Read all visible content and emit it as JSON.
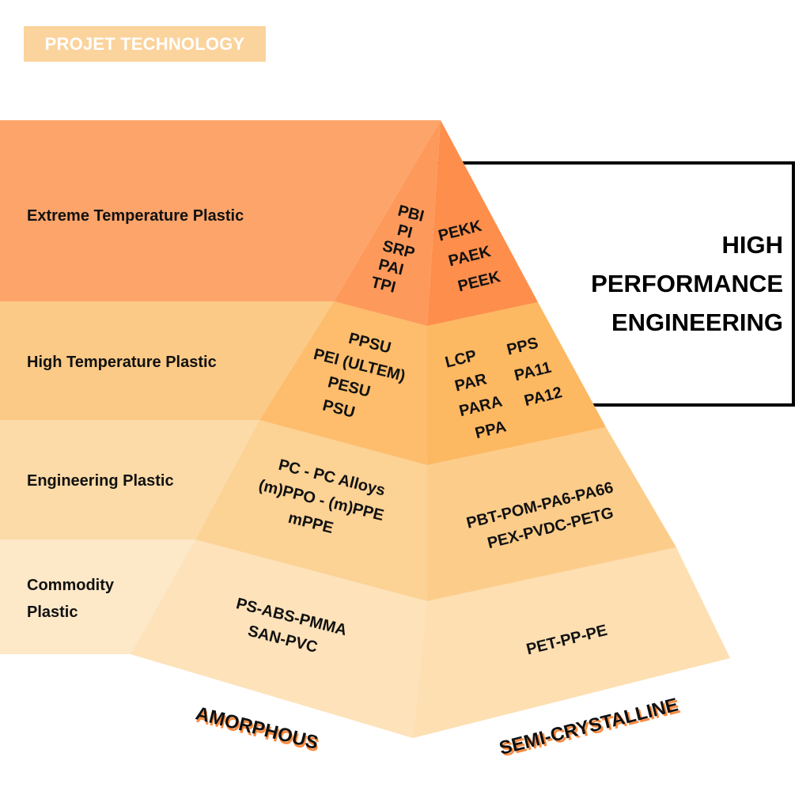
{
  "brand": {
    "label": "PROJET TECHNOLOGY"
  },
  "callout": {
    "lines": [
      "HIGH",
      "PERFORMANCE",
      "ENGINEERING"
    ]
  },
  "tiers": [
    {
      "label": [
        "Extreme Temperature Plastic"
      ],
      "amorphous": [
        "PBI",
        "PI",
        "SRP",
        "PAI",
        "TPI"
      ],
      "semi_crystalline": [
        "PEKK",
        "PAEK",
        "PEEK"
      ]
    },
    {
      "label": [
        "High Temperature Plastic"
      ],
      "amorphous": [
        "PPSU",
        "PEI (ULTEM)",
        "PESU",
        "PSU"
      ],
      "semi_crystalline_col1": [
        "LCP",
        "PAR",
        "PARA",
        "PPA"
      ],
      "semi_crystalline_col2": [
        "PPS",
        "PA11",
        "PA12"
      ]
    },
    {
      "label": [
        "Engineering Plastic"
      ],
      "amorphous": [
        "PC - PC Alloys",
        "(m)PPO - (m)PPE",
        "mPPE"
      ],
      "semi_crystalline": [
        "PBT-POM-PA6-PA66",
        "PEX-PVDC-PETG"
      ]
    },
    {
      "label": [
        "Commodity",
        "Plastic"
      ],
      "amorphous": [
        "PS-ABS-PMMA",
        "SAN-PVC"
      ],
      "semi_crystalline": [
        "PET-PP-PE"
      ]
    }
  ],
  "axis": {
    "left": "AMORPHOUS",
    "right": "SEMI-CRYSTALLINE"
  },
  "colors": {
    "tier1_band": "#fda46a",
    "tier1_left": "#fd9a5b",
    "tier1_right": "#fd8e4b",
    "tier2_band": "#fcca87",
    "tier2_left": "#fdbd6c",
    "tier2_right": "#fdb862",
    "tier3_band": "#fcdba8",
    "tier3_left": "#fcd295",
    "tier3_right": "#fccd8a",
    "tier4_band": "#fde8c8",
    "tier4_left": "#fde2ba",
    "tier4_right": "#fddfb2",
    "brand_bg": "#fbd39c",
    "axis_shadow": "#fd8a3c"
  }
}
